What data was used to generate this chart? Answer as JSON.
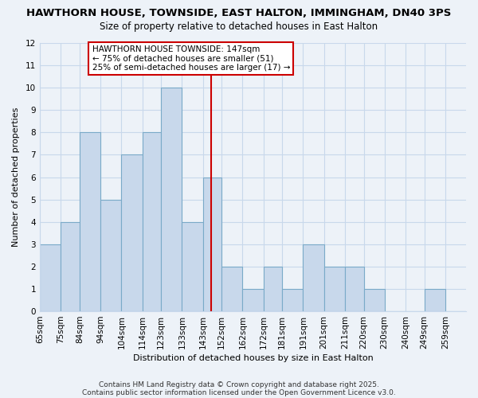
{
  "title1": "HAWTHORN HOUSE, TOWNSIDE, EAST HALTON, IMMINGHAM, DN40 3PS",
  "title2": "Size of property relative to detached houses in East Halton",
  "xlabel": "Distribution of detached houses by size in East Halton",
  "ylabel": "Number of detached properties",
  "bin_edges": [
    65,
    75,
    84,
    94,
    104,
    114,
    123,
    133,
    143,
    152,
    162,
    172,
    181,
    191,
    201,
    211,
    220,
    230,
    240,
    249,
    259,
    269
  ],
  "bar_labels": [
    "65sqm",
    "75sqm",
    "84sqm",
    "94sqm",
    "104sqm",
    "114sqm",
    "123sqm",
    "133sqm",
    "143sqm",
    "152sqm",
    "162sqm",
    "172sqm",
    "181sqm",
    "191sqm",
    "201sqm",
    "211sqm",
    "220sqm",
    "230sqm",
    "240sqm",
    "249sqm",
    "259sqm"
  ],
  "bar_values": [
    3,
    4,
    8,
    5,
    7,
    8,
    10,
    4,
    6,
    2,
    1,
    2,
    1,
    3,
    2,
    2,
    1,
    0,
    0,
    1,
    0
  ],
  "bar_color": "#c8d8eb",
  "bar_edge_color": "#7aaac8",
  "vline_x": 147,
  "vline_color": "#cc0000",
  "ylim": [
    0,
    12
  ],
  "yticks": [
    0,
    1,
    2,
    3,
    4,
    5,
    6,
    7,
    8,
    9,
    10,
    11,
    12
  ],
  "grid_color": "#c8d8eb",
  "background_color": "#edf2f8",
  "annotation_title": "HAWTHORN HOUSE TOWNSIDE: 147sqm",
  "annotation_line1": "← 75% of detached houses are smaller (51)",
  "annotation_line2": "25% of semi-detached houses are larger (17) →",
  "annotation_box_color": "#ffffff",
  "annotation_box_edge": "#cc0000",
  "footnote1": "Contains HM Land Registry data © Crown copyright and database right 2025.",
  "footnote2": "Contains public sector information licensed under the Open Government Licence v3.0.",
  "title1_fontsize": 9.5,
  "title2_fontsize": 8.5,
  "xlabel_fontsize": 8,
  "ylabel_fontsize": 8,
  "tick_fontsize": 7.5,
  "annotation_fontsize": 7.5,
  "footnote_fontsize": 6.5
}
